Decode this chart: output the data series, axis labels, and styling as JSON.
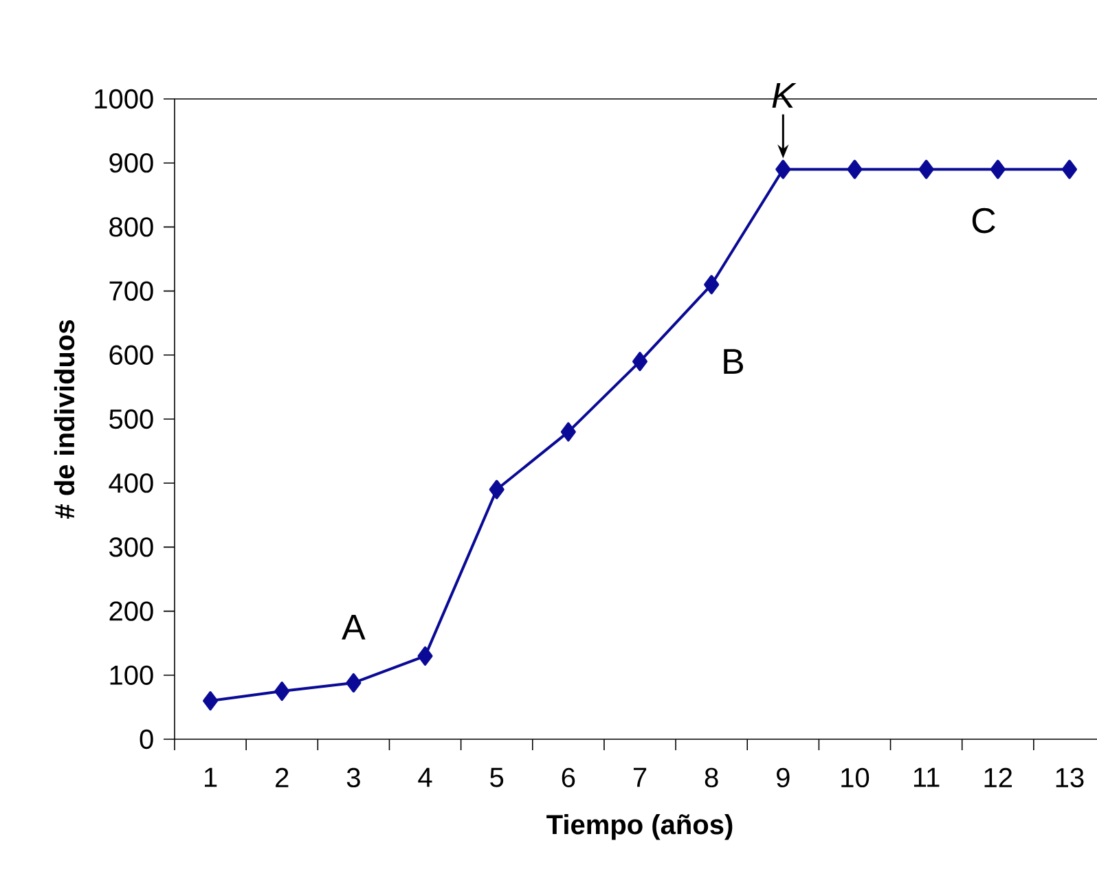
{
  "chart_data": {
    "type": "line",
    "xlabel": "Tiempo (años)",
    "ylabel": "# de individuos",
    "categories": [
      "1",
      "2",
      "3",
      "4",
      "5",
      "6",
      "7",
      "8",
      "9",
      "10",
      "11",
      "12",
      "13"
    ],
    "series": [
      {
        "color": "#0a0a96",
        "values": [
          60,
          75,
          88,
          130,
          390,
          480,
          590,
          710,
          890,
          890,
          890,
          890,
          890
        ]
      }
    ],
    "ylim": [
      0,
      1000
    ],
    "yticks": [
      0,
      100,
      200,
      300,
      400,
      500,
      600,
      700,
      800,
      900,
      1000
    ],
    "marker": "diamond",
    "line_style": "solid",
    "grid": false,
    "annotations": [
      "A",
      "B",
      "C",
      {
        "text": "K",
        "x": "9",
        "y": 890
      }
    ]
  }
}
